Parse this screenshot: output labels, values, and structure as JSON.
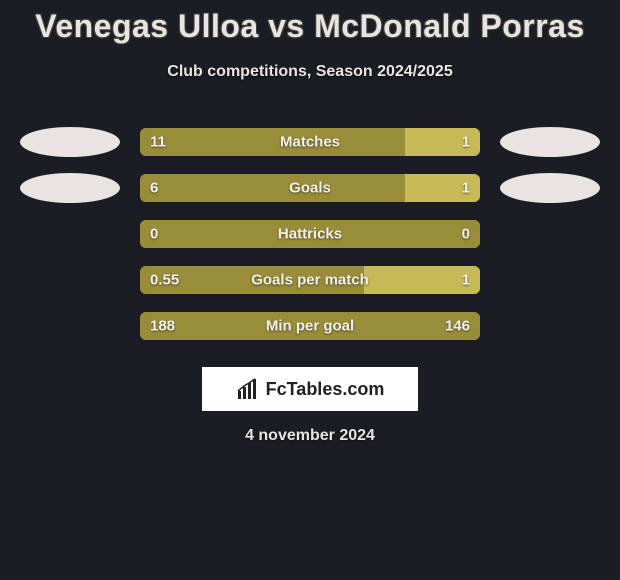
{
  "title": "Venegas Ulloa vs McDonald Porras",
  "subtitle": "Club competitions, Season 2024/2025",
  "date": "4 november 2024",
  "brand": "FcTables.com",
  "colors": {
    "background": "#1a1d24",
    "bar_dark": "#9a8d3a",
    "bar_light": "#c7b955",
    "ellipse": "#e9e4e1",
    "text": "#e9e4e1"
  },
  "stats": [
    {
      "label": "Matches",
      "left_value": "11",
      "right_value": "1",
      "left_pct": 78,
      "right_pct": 22,
      "left_color": "#9a8d3a",
      "right_color": "#c7b955",
      "show_left_ellipse": true,
      "show_right_ellipse": true
    },
    {
      "label": "Goals",
      "left_value": "6",
      "right_value": "1",
      "left_pct": 78,
      "right_pct": 22,
      "left_color": "#9a8d3a",
      "right_color": "#c7b955",
      "show_left_ellipse": true,
      "show_right_ellipse": true
    },
    {
      "label": "Hattricks",
      "left_value": "0",
      "right_value": "0",
      "left_pct": 100,
      "right_pct": 0,
      "left_color": "#9a8d3a",
      "right_color": "#c7b955",
      "show_left_ellipse": false,
      "show_right_ellipse": false
    },
    {
      "label": "Goals per match",
      "left_value": "0.55",
      "right_value": "1",
      "left_pct": 66,
      "right_pct": 34,
      "left_color": "#9a8d3a",
      "right_color": "#c7b955",
      "show_left_ellipse": false,
      "show_right_ellipse": false
    },
    {
      "label": "Min per goal",
      "left_value": "188",
      "right_value": "146",
      "left_pct": 100,
      "right_pct": 0,
      "left_color": "#9a8d3a",
      "right_color": "#c7b955",
      "show_left_ellipse": false,
      "show_right_ellipse": false
    }
  ]
}
